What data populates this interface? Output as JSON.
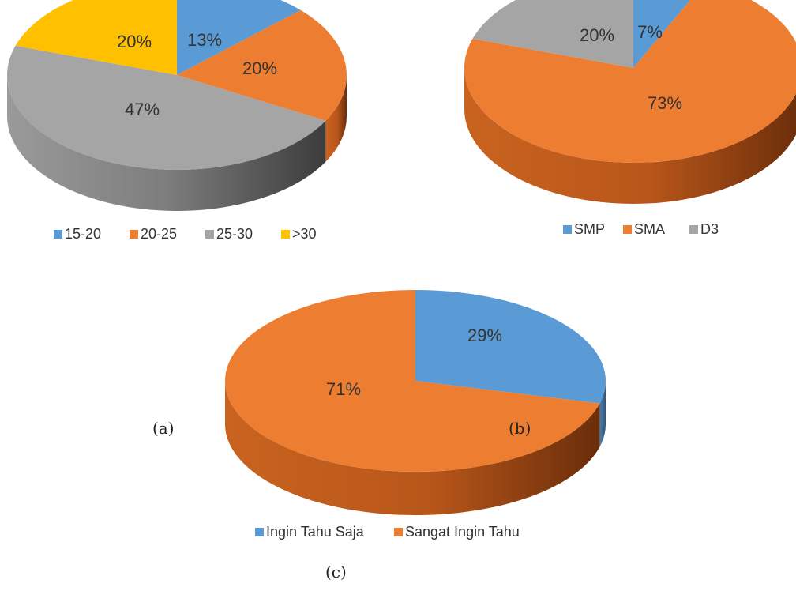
{
  "chart_data": [
    {
      "type": "pie",
      "categories": [
        "15-20",
        "20-25",
        "25-30",
        ">30"
      ],
      "values": [
        13,
        20,
        47,
        20
      ],
      "value_labels": [
        "13%",
        "20%",
        "47%",
        "20%"
      ],
      "colors": [
        "#5b9bd5",
        "#ed7d31",
        "#a5a5a5",
        "#ffc000"
      ],
      "style": "3d",
      "legend": "bottom",
      "caption": "(a)"
    },
    {
      "type": "pie",
      "categories": [
        "SMP",
        "SMA",
        "D3"
      ],
      "values": [
        7,
        73,
        20
      ],
      "value_labels": [
        "7%",
        "73%",
        "20%"
      ],
      "colors": [
        "#5b9bd5",
        "#ed7d31",
        "#a5a5a5"
      ],
      "style": "3d",
      "legend": "bottom",
      "caption": "(b)"
    },
    {
      "type": "pie",
      "categories": [
        "Ingin Tahu Saja",
        "Sangat Ingin Tahu"
      ],
      "values": [
        29,
        71
      ],
      "value_labels": [
        "29%",
        "71%"
      ],
      "colors": [
        "#5b9bd5",
        "#ed7d31"
      ],
      "style": "3d",
      "legend": "bottom",
      "caption": "(c)"
    }
  ]
}
